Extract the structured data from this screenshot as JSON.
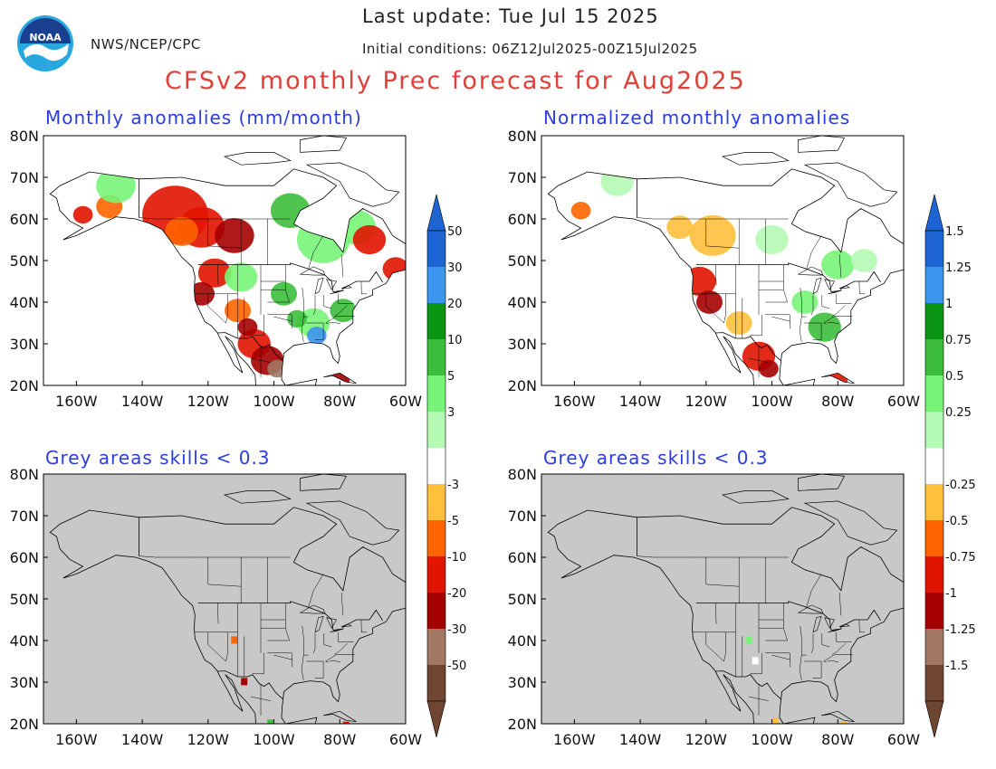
{
  "header": {
    "last_update": "Last update: Tue Jul 15 2025",
    "initial_conditions": "Initial conditions: 06Z12Jul2025-00Z15Jul2025",
    "agency": "NWS/NCEP/CPC",
    "logo_text": "NOAA",
    "title": "CFSv2 monthly Prec forecast for Aug2025"
  },
  "panels": [
    {
      "id": "anom",
      "title": "Monthly anomalies (mm/month)",
      "shading": "anomaly"
    },
    {
      "id": "norm",
      "title": "Normalized monthly anomalies",
      "shading": "normalized"
    },
    {
      "id": "anom-skill",
      "title": "Grey areas skills < 0.3",
      "shading": "skill-masked"
    },
    {
      "id": "norm-skill",
      "title": "Grey areas skills < 0.3",
      "shading": "skill-masked"
    }
  ],
  "axes": {
    "lat_labels": [
      "80N",
      "70N",
      "60N",
      "50N",
      "40N",
      "30N",
      "20N"
    ],
    "lon_labels": [
      "160W",
      "140W",
      "120W",
      "100W",
      "80W",
      "60W"
    ]
  },
  "colorbars": {
    "anomaly": {
      "labels": [
        "50",
        "30",
        "20",
        "10",
        "5",
        "3",
        "-3",
        "-5",
        "-10",
        "-20",
        "-30",
        "-50"
      ]
    },
    "normalized": {
      "labels": [
        "1.5",
        "1.25",
        "1",
        "0.75",
        "0.5",
        "0.25",
        "-0.25",
        "-0.5",
        "-0.75",
        "-1",
        "-1.25",
        "-1.5"
      ]
    },
    "colors": [
      "#1e64d2",
      "#3c96f0",
      "#0a9614",
      "#3cbe3c",
      "#78f578",
      "#b4fab4",
      "#ffffff",
      "#ffc03c",
      "#ff6400",
      "#e11400",
      "#a50000",
      "#a07864",
      "#6e4632"
    ],
    "top_color": "#1e64d2",
    "bottom_color": "#6e4632"
  },
  "palette": {
    "land": "#ffffff",
    "ocean": "#ffffff",
    "masked": "#c8c8c8",
    "coast": "#000000"
  }
}
